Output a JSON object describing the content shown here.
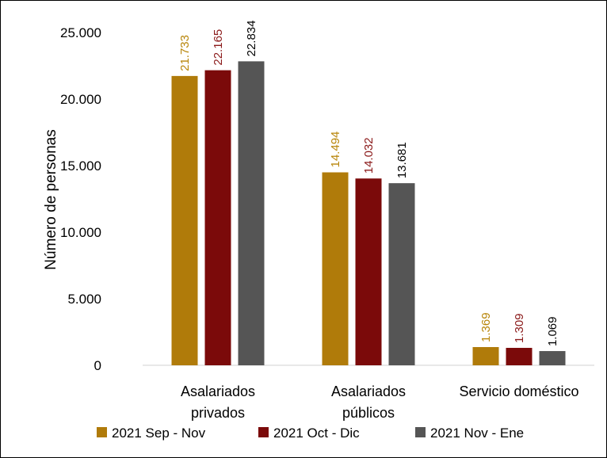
{
  "chart_data": {
    "type": "bar",
    "title": "",
    "xlabel": "",
    "ylabel": "Número de personas",
    "ylim": [
      0,
      25000
    ],
    "yticks": [
      0,
      5000,
      10000,
      15000,
      20000,
      25000
    ],
    "ytick_labels": [
      "0",
      "5.000",
      "10.000",
      "15.000",
      "20.000",
      "25.000"
    ],
    "categories": [
      [
        "Asalariados",
        "privados"
      ],
      [
        "Asalariados",
        "públicos"
      ],
      [
        "Servicio doméstico"
      ]
    ],
    "series": [
      {
        "name": "2021 Sep - Nov",
        "color": "#B07B0A",
        "label_color": "#B8860B",
        "values": [
          21733,
          14494,
          1369
        ],
        "labels": [
          "21.733",
          "14.494",
          "1.369"
        ]
      },
      {
        "name": "2021 Oct - Dic",
        "color": "#7B0A0A",
        "label_color": "#8B1A1A",
        "values": [
          22165,
          14032,
          1309
        ],
        "labels": [
          "22.165",
          "14.032",
          "1.309"
        ]
      },
      {
        "name": "2021 Nov - Ene",
        "color": "#555555",
        "label_color": "#000000",
        "values": [
          22834,
          13681,
          1069
        ],
        "labels": [
          "22.834",
          "13.681",
          "1.069"
        ]
      }
    ],
    "grid": false,
    "legend_position": "bottom"
  }
}
